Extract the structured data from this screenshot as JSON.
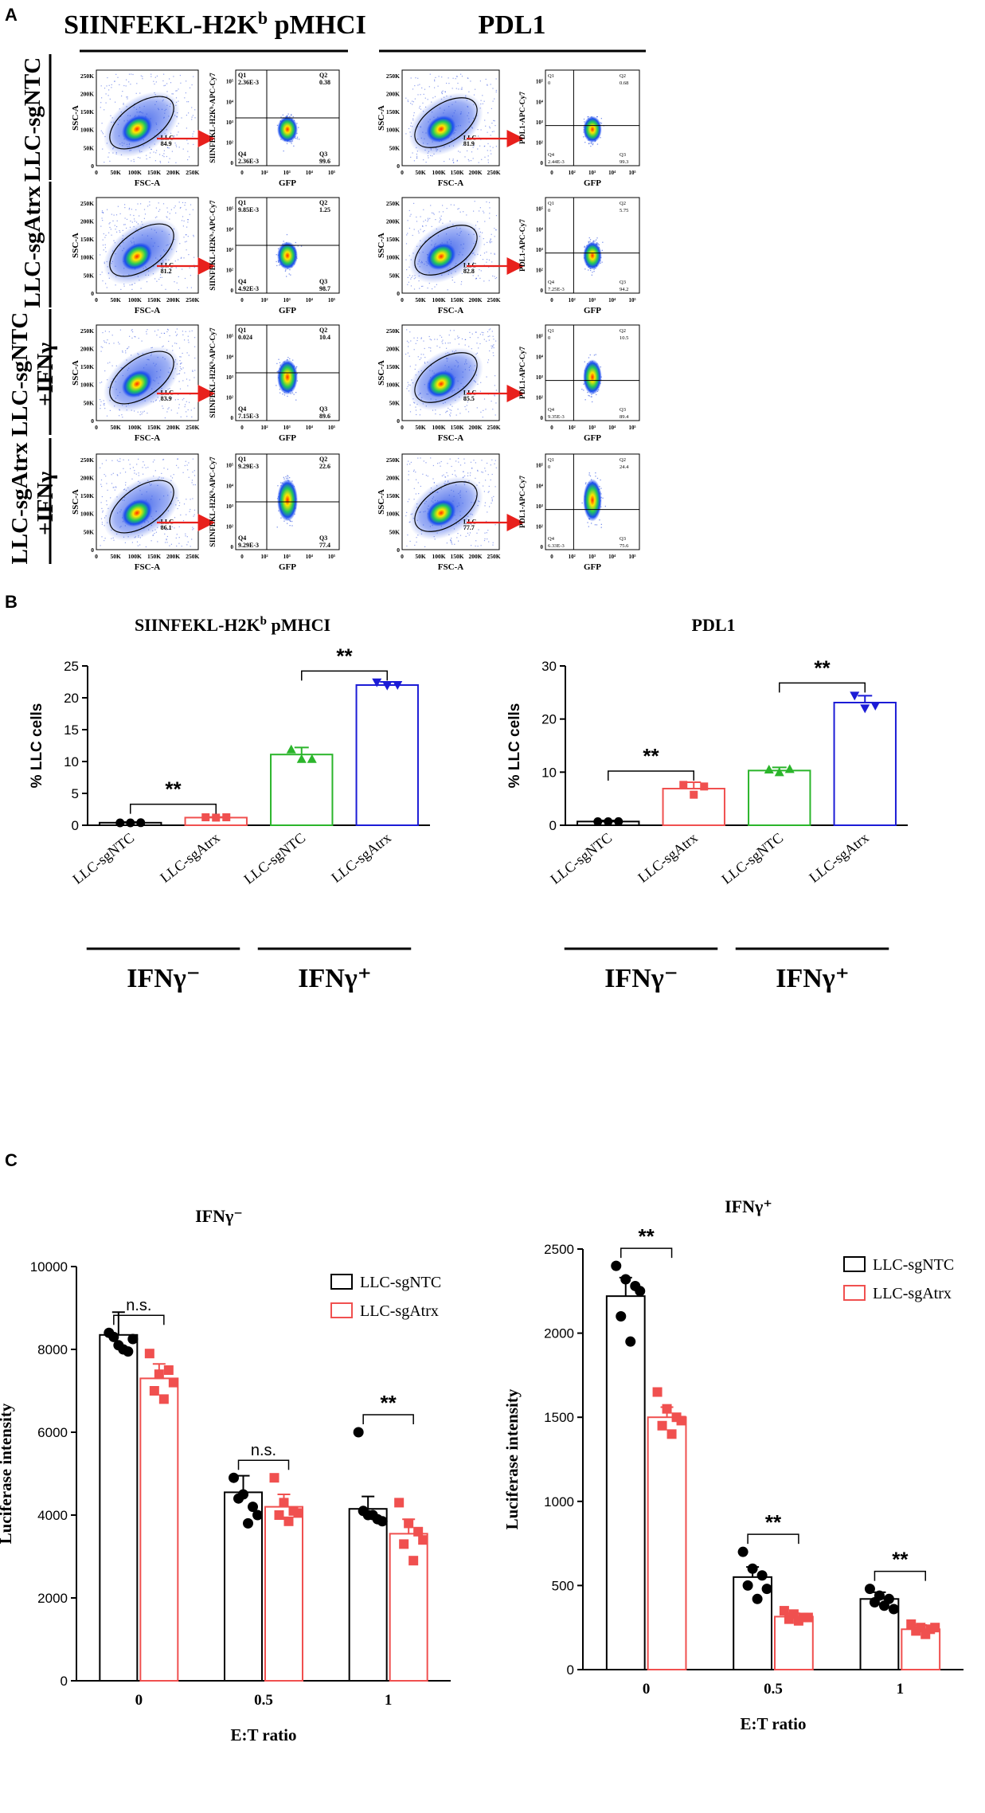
{
  "panelA": {
    "letter": "A",
    "col1_title": "SIINFEKL-H2K",
    "col1_title_sup": "b",
    "col1_title_tail": " pMHCI",
    "col2_title": "PDL1",
    "rows": [
      {
        "label_lines": [
          "LLC-sgNTC"
        ],
        "col1": {
          "gate_label": "LLC",
          "gate_value": "84.9",
          "q1": "2.36E-3",
          "q2": "0.38",
          "q3": "99.6",
          "q4": "2.36E-3"
        },
        "col2": {
          "gate_label": "LLC",
          "gate_value": "81.9",
          "q1": "0",
          "q2": "0.68",
          "q3": "99.3",
          "q4": "2.44E-3"
        }
      },
      {
        "label_lines": [
          "LLC-sgAtrx"
        ],
        "col1": {
          "gate_label": "LLC",
          "gate_value": "81.2",
          "q1": "9.85E-3",
          "q2": "1.25",
          "q3": "98.7",
          "q4": "4.92E-3"
        },
        "col2": {
          "gate_label": "LLC",
          "gate_value": "82.8",
          "q1": "0",
          "q2": "5.75",
          "q3": "94.2",
          "q4": "7.25E-3"
        }
      },
      {
        "label_lines": [
          "LLC-sgNTC",
          "+IFNγ"
        ],
        "col1": {
          "gate_label": "LLC",
          "gate_value": "83.9",
          "q1": "0.024",
          "q2": "10.4",
          "q3": "89.6",
          "q4": "7.15E-3"
        },
        "col2": {
          "gate_label": "LLC",
          "gate_value": "85.5",
          "q1": "0",
          "q2": "10.5",
          "q3": "89.4",
          "q4": "9.35E-3"
        }
      },
      {
        "label_lines": [
          "LLC-sgAtrx",
          "+IFNγ"
        ],
        "col1": {
          "gate_label": "LLC",
          "gate_value": "86.1",
          "q1": "9.29E-3",
          "q2": "22.6",
          "q3": "77.4",
          "q4": "9.29E-3"
        },
        "col2": {
          "gate_label": "LLC",
          "gate_value": "77.7",
          "q1": "0",
          "q2": "24.4",
          "q3": "75.6",
          "q4": "6.33E-3"
        }
      }
    ],
    "scatter_xlabel": "FSC-A",
    "scatter_ylabel": "SSC-A",
    "scatter_xticks": [
      "0",
      "50K",
      "100K",
      "150K",
      "200K",
      "250K"
    ],
    "scatter_yticks": [
      "0",
      "50K",
      "100K",
      "150K",
      "200K",
      "250K"
    ],
    "quad_xlabel": "GFP",
    "quad_ylabel_col1": "SIINFEKL-H2Kᵇ-APC-Cy7",
    "quad_ylabel_col2": "PDL1-APC-Cy7",
    "quad_ticks": [
      "0",
      "10²",
      "10³",
      "10⁴",
      "10⁵"
    ],
    "quad_names": [
      "Q1",
      "Q2",
      "Q3",
      "Q4"
    ]
  },
  "panelB": {
    "letter": "B",
    "ylabel": "% LLC cells",
    "group_labels": [
      "IFNγ⁻",
      "IFNγ⁺"
    ],
    "sig": "**"
  },
  "panelC": {
    "letter": "C",
    "xlabel": "E:T ratio",
    "ylabel": "Luciferase intensity",
    "legend": [
      "LLC-sgNTC",
      "LLC-sgAtrx"
    ]
  },
  "colors": {
    "ntc": "#000000",
    "atrx": "#f0504f",
    "green": "#2bb52b",
    "blue": "#1c1cd6",
    "red_arrow": "#e8201c"
  },
  "chart_data": [
    {
      "type": "bar",
      "title": "SIINFEKL-H2Kᵇ pMHCI",
      "ylabel": "% LLC cells",
      "ylim": [
        0,
        25
      ],
      "yticks": [
        0,
        5,
        10,
        15,
        20,
        25
      ],
      "categories": [
        "LLC-sgNTC",
        "LLC-sgAtrx",
        "LLC-sgNTC",
        "LLC-sgAtrx"
      ],
      "groups": [
        "IFNγ⁻",
        "IFNγ⁻",
        "IFNγ⁺",
        "IFNγ⁺"
      ],
      "values": [
        0.4,
        1.2,
        11.1,
        22.0
      ],
      "errors": [
        0.1,
        0.1,
        1.1,
        0.5
      ],
      "points": [
        [
          0.38,
          0.38,
          0.4
        ],
        [
          1.25,
          1.2,
          1.25
        ],
        [
          11.9,
          10.4,
          10.4
        ],
        [
          22.4,
          21.9,
          22.0
        ]
      ],
      "colors": [
        "#000000",
        "#f0504f",
        "#2bb52b",
        "#1c1cd6"
      ],
      "significance": [
        {
          "between": [
            0,
            1
          ],
          "label": "**",
          "y": 3.3
        },
        {
          "between": [
            2,
            3
          ],
          "label": "**",
          "y": 24.2
        }
      ]
    },
    {
      "type": "bar",
      "title": "PDL1",
      "ylabel": "% LLC cells",
      "ylim": [
        0,
        30
      ],
      "yticks": [
        0,
        10,
        20,
        30
      ],
      "categories": [
        "LLC-sgNTC",
        "LLC-sgAtrx",
        "LLC-sgNTC",
        "LLC-sgAtrx"
      ],
      "groups": [
        "IFNγ⁻",
        "IFNγ⁻",
        "IFNγ⁺",
        "IFNγ⁺"
      ],
      "values": [
        0.7,
        6.9,
        10.3,
        23.1
      ],
      "errors": [
        0.2,
        1.2,
        0.6,
        1.3
      ],
      "points": [
        [
          0.68,
          0.68,
          0.7
        ],
        [
          7.6,
          5.75,
          7.3
        ],
        [
          10.5,
          10.0,
          10.6
        ],
        [
          24.4,
          22.0,
          22.5
        ]
      ],
      "colors": [
        "#000000",
        "#f0504f",
        "#2bb52b",
        "#1c1cd6"
      ],
      "significance": [
        {
          "between": [
            0,
            1
          ],
          "label": "**",
          "y": 10.2
        },
        {
          "between": [
            2,
            3
          ],
          "label": "**",
          "y": 26.8
        }
      ]
    },
    {
      "type": "bar",
      "title": "IFNγ⁻",
      "xlabel": "E:T ratio",
      "ylabel": "Luciferase intensity",
      "ylim": [
        0,
        10000
      ],
      "yticks": [
        0,
        2000,
        4000,
        6000,
        8000,
        10000
      ],
      "categories": [
        "0",
        "0.5",
        "1"
      ],
      "series": [
        {
          "name": "LLC-sgNTC",
          "values": [
            8350,
            4550,
            4150
          ],
          "errors": [
            550,
            400,
            300
          ],
          "points": [
            [
              8400,
              8100,
              7950,
              8300,
              8000,
              8250
            ],
            [
              4900,
              4500,
              4200,
              4400,
              3800,
              4000
            ],
            [
              6000,
              4000,
              3900,
              4100,
              4000,
              3850
            ]
          ]
        },
        {
          "name": "LLC-sgAtrx",
          "values": [
            7300,
            4200,
            3550
          ],
          "errors": [
            350,
            300,
            350
          ],
          "points": [
            [
              7900,
              7400,
              7500,
              7000,
              6800,
              7200
            ],
            [
              4900,
              4300,
              4100,
              4000,
              3850,
              4050
            ],
            [
              4300,
              3800,
              3600,
              3300,
              2900,
              3400
            ]
          ]
        }
      ],
      "significance": [
        {
          "category": "0",
          "label": "n.s."
        },
        {
          "category": "0.5",
          "label": "n.s."
        },
        {
          "category": "1",
          "label": "**"
        }
      ]
    },
    {
      "type": "bar",
      "title": "IFNγ⁺",
      "xlabel": "E:T ratio",
      "ylabel": "Luciferase intensity",
      "ylim": [
        0,
        2500
      ],
      "yticks": [
        0,
        500,
        1000,
        1500,
        2000,
        2500
      ],
      "categories": [
        "0",
        "0.5",
        "1"
      ],
      "series": [
        {
          "name": "LLC-sgNTC",
          "values": [
            2220,
            550,
            420
          ],
          "errors": [
            110,
            60,
            40
          ],
          "points": [
            [
              2400,
              2320,
              2280,
              2100,
              1950,
              2250
            ],
            [
              700,
              600,
              560,
              500,
              420,
              480
            ],
            [
              480,
              440,
              420,
              400,
              380,
              360
            ]
          ]
        },
        {
          "name": "LLC-sgAtrx",
          "values": [
            1500,
            315,
            240
          ],
          "errors": [
            60,
            20,
            25
          ],
          "points": [
            [
              1650,
              1550,
              1500,
              1450,
              1400,
              1480
            ],
            [
              350,
              330,
              310,
              300,
              290,
              310
            ],
            [
              270,
              250,
              240,
              230,
              210,
              250
            ]
          ]
        }
      ],
      "significance": [
        {
          "category": "0",
          "label": "**"
        },
        {
          "category": "0.5",
          "label": "**"
        },
        {
          "category": "1",
          "label": "**"
        }
      ]
    }
  ]
}
